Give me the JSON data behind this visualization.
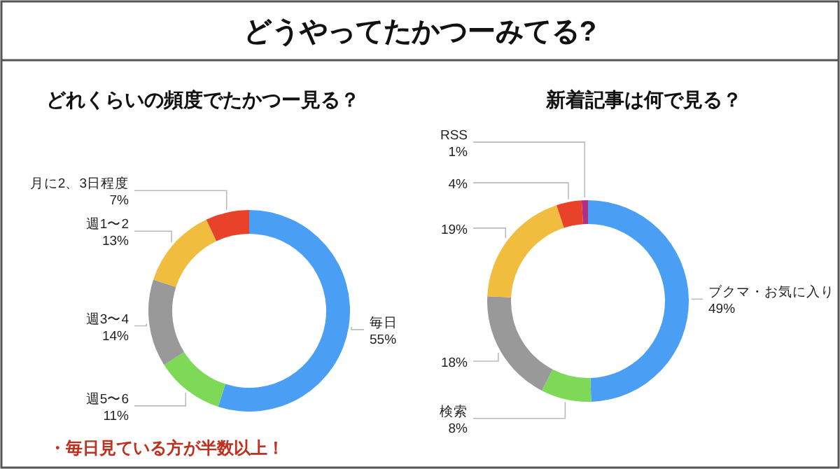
{
  "chart_data": [
    {
      "type": "donut",
      "title": "どうやってたかつーみてる?",
      "subtitle": "どれくらいの頻度でたかつー見る？",
      "categories": [
        "毎日",
        "週5〜6",
        "週3〜4",
        "週1〜2",
        "月に2、3日程度"
      ],
      "values": [
        55,
        11,
        14,
        13,
        7
      ],
      "colors": [
        "#4a9ff5",
        "#7ed957",
        "#999999",
        "#f0bd3f",
        "#e8432a"
      ],
      "value_labels": [
        "55%",
        "11%",
        "14%",
        "13%",
        "7%"
      ],
      "annotations": [
        "・毎日見ている方が半数以上！"
      ]
    },
    {
      "type": "donut",
      "title": "新着記事は何で見る？",
      "categories": [
        "ブクマ・お気に入り",
        "検索",
        null,
        null,
        null,
        "RSS"
      ],
      "values": [
        49,
        8,
        18,
        19,
        4,
        1
      ],
      "colors": [
        "#4a9ff5",
        "#7ed957",
        "#999999",
        "#f0bd3f",
        "#e8432a",
        "#b02f83"
      ],
      "value_labels": [
        "49%",
        "8%",
        "18%",
        "19%",
        "4%",
        "1%"
      ]
    }
  ]
}
